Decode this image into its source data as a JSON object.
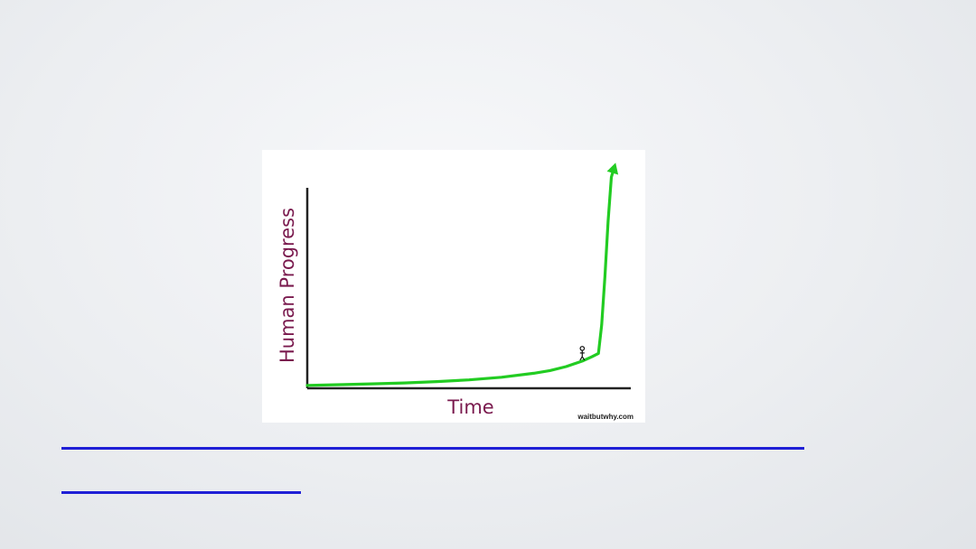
{
  "slide": {
    "underlines": [
      {
        "text": ""
      },
      {
        "text": ""
      }
    ]
  },
  "chart_data": {
    "type": "line",
    "title": "",
    "xlabel": "Time",
    "ylabel": "Human Progress",
    "credit": "waitbutwhy.com",
    "x": [
      0,
      10,
      20,
      30,
      40,
      50,
      60,
      70,
      75,
      80,
      85,
      88,
      90,
      91,
      92,
      93,
      94,
      95
    ],
    "series": [
      {
        "values": [
          0.5,
          0.8,
          1.2,
          1.6,
          2.2,
          3.0,
          4.2,
          6.0,
          7.2,
          9.0,
          11.5,
          13.5,
          15.0,
          28.0,
          50.0,
          75.0,
          95.0,
          100.0
        ],
        "color": "#22cc22"
      }
    ],
    "xlim": [
      0,
      100
    ],
    "ylim": [
      0,
      100
    ],
    "grid": false,
    "legend": "none",
    "annotations": [
      {
        "type": "stick-figure",
        "x": 85,
        "y": 11.5
      }
    ],
    "axis_color": "#222222",
    "axis_title_color": "#7a1a4e",
    "line_color": "#22cc22"
  }
}
